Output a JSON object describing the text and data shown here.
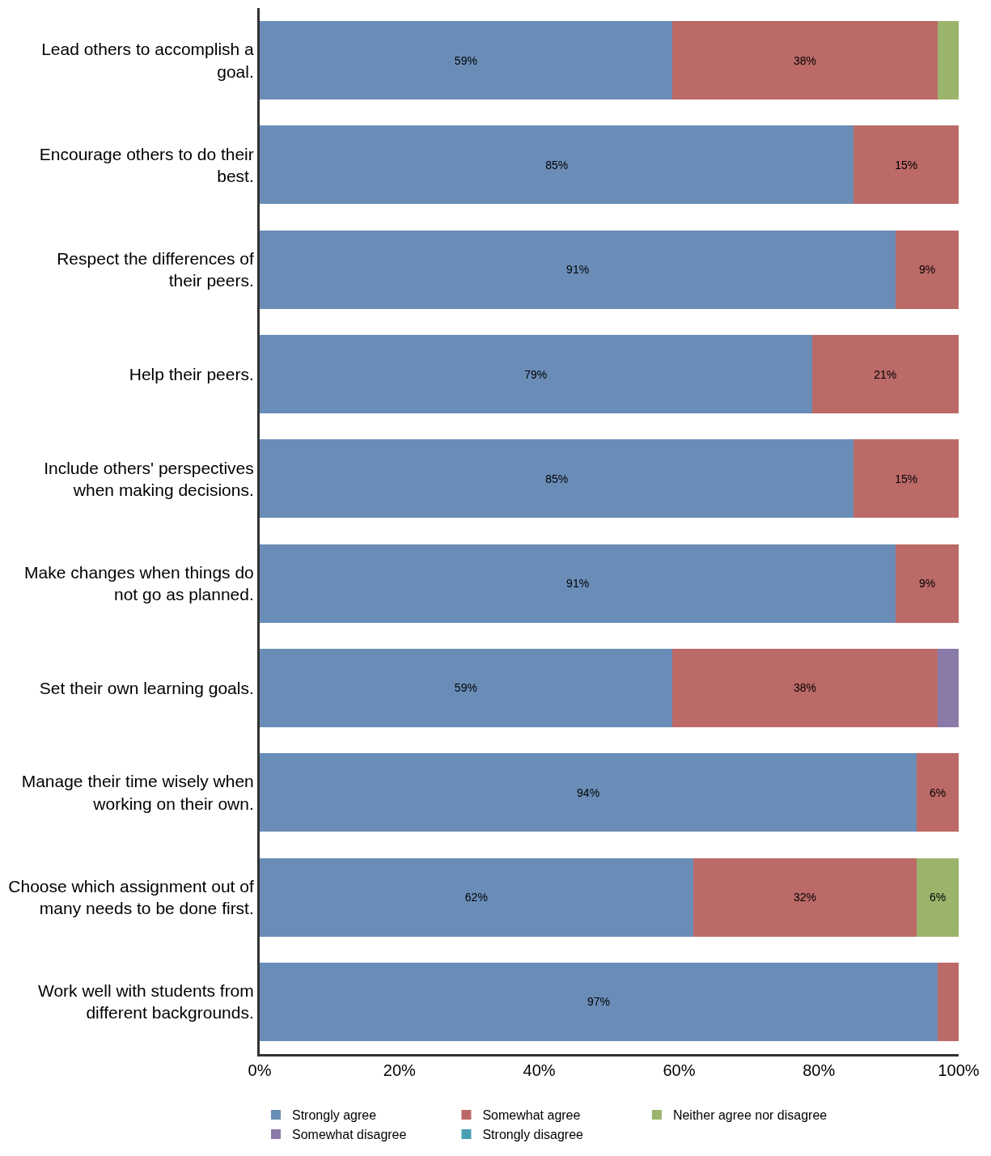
{
  "chart_data": {
    "type": "bar",
    "orientation": "horizontal",
    "stacked": true,
    "categories": [
      "Lead others to accomplish a goal.",
      "Encourage others to do their best.",
      "Respect the differences of their peers.",
      "Help their peers.",
      "Include others' perspectives when making decisions.",
      "Make changes when things do not go as planned.",
      "Set their own learning goals.",
      "Manage their time wisely when working on their own.",
      "Choose which assignment out of many needs to be done first.",
      "Work well with students from different backgrounds."
    ],
    "series": [
      {
        "name": "Strongly agree",
        "color": "#6a8db8",
        "values": [
          59,
          85,
          91,
          79,
          85,
          91,
          59,
          94,
          62,
          97
        ],
        "value_labels": [
          "59%",
          "85%",
          "91%",
          "79%",
          "85%",
          "91%",
          "59%",
          "94%",
          "62%",
          "97%"
        ]
      },
      {
        "name": "Somewhat agree",
        "color": "#bb6a67",
        "values": [
          38,
          15,
          9,
          21,
          15,
          9,
          38,
          6,
          32,
          3
        ],
        "value_labels": [
          "38%",
          "15%",
          "9%",
          "21%",
          "15%",
          "9%",
          "38%",
          "6%",
          "32%",
          null
        ]
      },
      {
        "name": "Neither agree nor disagree",
        "color": "#9bb46c",
        "values": [
          3,
          0,
          0,
          0,
          0,
          0,
          0,
          0,
          6,
          0
        ],
        "value_labels": [
          null,
          null,
          null,
          null,
          null,
          null,
          null,
          null,
          "6%",
          null
        ]
      },
      {
        "name": "Somewhat disagree",
        "color": "#8a7aa8",
        "values": [
          0,
          0,
          0,
          0,
          0,
          0,
          3,
          0,
          0,
          0
        ]
      },
      {
        "name": "Strongly disagree",
        "color": "#4aa0b5",
        "values": [
          0,
          0,
          0,
          0,
          0,
          0,
          0,
          0,
          0,
          0
        ]
      }
    ],
    "xlim": [
      0,
      100
    ],
    "xticks": [
      {
        "value": 0,
        "label": "0%"
      },
      {
        "value": 20,
        "label": "20%"
      },
      {
        "value": 40,
        "label": "40%"
      },
      {
        "value": 60,
        "label": "60%"
      },
      {
        "value": 80,
        "label": "80%"
      },
      {
        "value": 100,
        "label": "100%"
      }
    ],
    "grid": false,
    "legend": "bottom"
  }
}
